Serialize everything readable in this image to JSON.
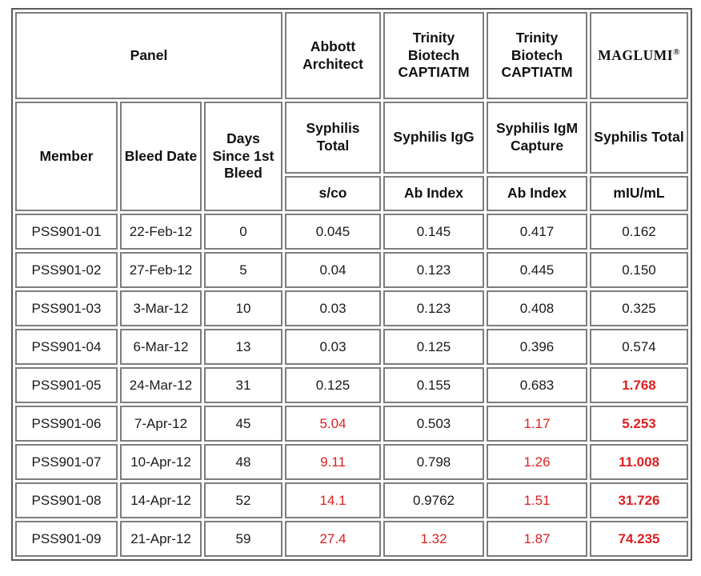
{
  "table": {
    "panel_header": "Panel",
    "columns": {
      "member": "Member",
      "bleed_date": "Bleed Date",
      "days_since": "Days Since 1st Bleed"
    },
    "assays": [
      {
        "name": "Abbott Architect",
        "test": "Syphilis Total",
        "unit": "s/co",
        "highlighted": false
      },
      {
        "name": "Trinity Biotech CAPTIATM",
        "test": "Syphilis IgG",
        "unit": "Ab Index",
        "highlighted": false
      },
      {
        "name": "Trinity Biotech CAPTIATM",
        "test": "Syphilis IgM Capture",
        "unit": "Ab Index",
        "highlighted": false
      },
      {
        "name": "MAGLUMI",
        "name_suffix": "®",
        "test": "Syphilis Total",
        "unit": "mIU/mL",
        "highlighted": true
      }
    ],
    "rows": [
      {
        "member": "PSS901-01",
        "bleed_date": "22-Feb-12",
        "days": "0",
        "results": [
          {
            "value": "0.045",
            "flagged": false
          },
          {
            "value": "0.145",
            "flagged": false
          },
          {
            "value": "0.417",
            "flagged": false
          },
          {
            "value": "0.162",
            "flagged": false
          }
        ]
      },
      {
        "member": "PSS901-02",
        "bleed_date": "27-Feb-12",
        "days": "5",
        "results": [
          {
            "value": "0.04",
            "flagged": false
          },
          {
            "value": "0.123",
            "flagged": false
          },
          {
            "value": "0.445",
            "flagged": false
          },
          {
            "value": "0.150",
            "flagged": false
          }
        ]
      },
      {
        "member": "PSS901-03",
        "bleed_date": "3-Mar-12",
        "days": "10",
        "results": [
          {
            "value": "0.03",
            "flagged": false
          },
          {
            "value": "0.123",
            "flagged": false
          },
          {
            "value": "0.408",
            "flagged": false
          },
          {
            "value": "0.325",
            "flagged": false
          }
        ]
      },
      {
        "member": "PSS901-04",
        "bleed_date": "6-Mar-12",
        "days": "13",
        "results": [
          {
            "value": "0.03",
            "flagged": false
          },
          {
            "value": "0.125",
            "flagged": false
          },
          {
            "value": "0.396",
            "flagged": false
          },
          {
            "value": "0.574",
            "flagged": false
          }
        ]
      },
      {
        "member": "PSS901-05",
        "bleed_date": "24-Mar-12",
        "days": "31",
        "results": [
          {
            "value": "0.125",
            "flagged": false
          },
          {
            "value": "0.155",
            "flagged": false
          },
          {
            "value": "0.683",
            "flagged": false
          },
          {
            "value": "1.768",
            "flagged": true
          }
        ]
      },
      {
        "member": "PSS901-06",
        "bleed_date": "7-Apr-12",
        "days": "45",
        "results": [
          {
            "value": "5.04",
            "flagged": true
          },
          {
            "value": "0.503",
            "flagged": false
          },
          {
            "value": "1.17",
            "flagged": true
          },
          {
            "value": "5.253",
            "flagged": true
          }
        ]
      },
      {
        "member": "PSS901-07",
        "bleed_date": "10-Apr-12",
        "days": "48",
        "results": [
          {
            "value": "9.11",
            "flagged": true
          },
          {
            "value": "0.798",
            "flagged": false
          },
          {
            "value": "1.26",
            "flagged": true
          },
          {
            "value": "11.008",
            "flagged": true
          }
        ]
      },
      {
        "member": "PSS901-08",
        "bleed_date": "14-Apr-12",
        "days": "52",
        "results": [
          {
            "value": "14.1",
            "flagged": true
          },
          {
            "value": "0.9762",
            "flagged": false
          },
          {
            "value": "1.51",
            "flagged": true
          },
          {
            "value": "31.726",
            "flagged": true
          }
        ]
      },
      {
        "member": "PSS901-09",
        "bleed_date": "21-Apr-12",
        "days": "59",
        "results": [
          {
            "value": "27.4",
            "flagged": true
          },
          {
            "value": "1.32",
            "flagged": true
          },
          {
            "value": "1.87",
            "flagged": true
          },
          {
            "value": "74.235",
            "flagged": true
          }
        ]
      }
    ]
  },
  "colors": {
    "highlight_bg": "#F8C9A6",
    "flag_text": "#DF1F1F",
    "brand_text": "#32190F",
    "cell_border": "#7d7d7d",
    "outer_border": "#595959"
  }
}
